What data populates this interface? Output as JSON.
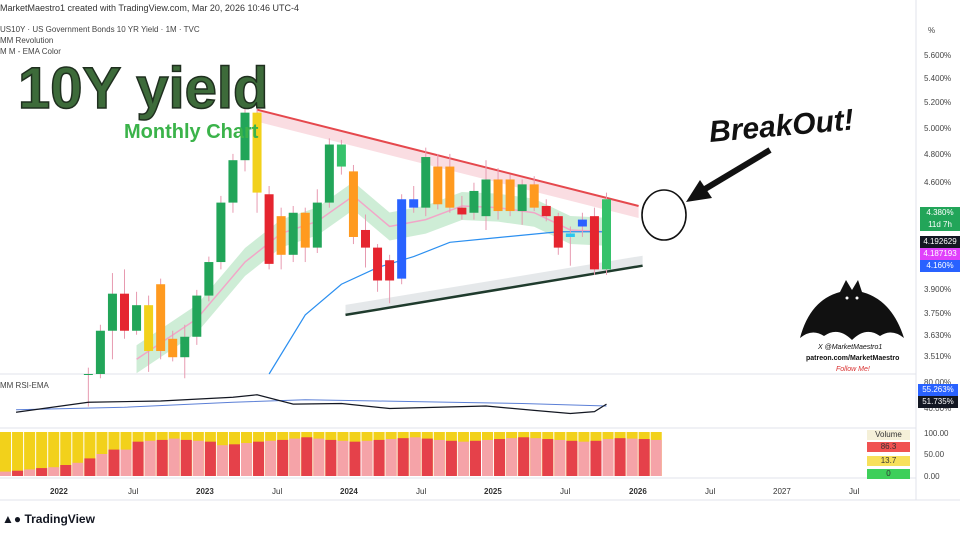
{
  "header": {
    "created_by": "MarketMaestro1 created with TradingView.com, Mar 20, 2026 10:46 UTC-4",
    "symbol_line": "US10Y · US Government Bonds 10 YR Yield · 1M · TVC",
    "indicator_1": "MM Revolution",
    "indicator_2": "M M - EMA Color",
    "rsi_label": "MM RSI-EMA"
  },
  "overlay": {
    "title": "10Y yield",
    "subtitle": "Monthly Chart",
    "callout": "BreakOut!",
    "watermark_1": "X @MarketMaestro1",
    "watermark_2": "patreon.com/MarketMaestro",
    "watermark_3": "Follow Me!"
  },
  "price_axis": {
    "unit": "%",
    "ticks": [
      "5.600%",
      "5.400%",
      "5.200%",
      "5.000%",
      "4.800%",
      "4.600%",
      "3.900%",
      "3.750%",
      "3.630%",
      "3.510%"
    ],
    "badge_last": "4.380%",
    "badge_countdown": "11d 7h",
    "badge_ema_fast": "4.192629",
    "badge_ema_slow": "4.187193",
    "badge_low": "4.160%"
  },
  "rsi_axis": {
    "ticks": [
      "80.00%",
      "40.00%"
    ],
    "badge_rsi": "55.263%",
    "badge_ema": "51.735%"
  },
  "volume_axis": {
    "ticks": [
      "100.00",
      "50.00",
      "0.00"
    ],
    "legend_title": "Volume",
    "legend_values": [
      "86.3",
      "13.7",
      "0"
    ],
    "legend_colors": [
      "#f05252",
      "#f7e05a",
      "#3ecf5a"
    ]
  },
  "time_axis": [
    "2022",
    "Jul",
    "2023",
    "Jul",
    "2024",
    "Jul",
    "2025",
    "Jul",
    "2026",
    "Jul",
    "2027",
    "Jul"
  ],
  "brand": "TradingView",
  "chart_data": {
    "type": "candlestick",
    "title": "US10Y · US Government Bonds 10 YR Yield · 1M · TVC",
    "interval": "1M",
    "yscale": "log",
    "ylim": [
      3.45,
      5.75
    ],
    "x_range": [
      "2021-08",
      "2027-09"
    ],
    "colors": {
      "up": "#22a559",
      "up_strong": "#36c26b",
      "down": "#e5252f",
      "orange": "#ff9a1f",
      "yellow": "#f2d11b",
      "blue": "#2962ff",
      "cyan": "#29c7ef"
    },
    "candles": [
      {
        "m": "2022-03",
        "o": 3.45,
        "h": 3.48,
        "l": 3.3,
        "c": 3.45,
        "color": "up"
      },
      {
        "m": "2022-04",
        "o": 3.45,
        "h": 3.69,
        "l": 3.43,
        "c": 3.66,
        "color": "up"
      },
      {
        "m": "2022-05",
        "o": 3.66,
        "h": 3.96,
        "l": 3.52,
        "c": 3.85,
        "color": "up"
      },
      {
        "m": "2022-06",
        "o": 3.85,
        "h": 3.98,
        "l": 3.62,
        "c": 3.66,
        "color": "down"
      },
      {
        "m": "2022-07",
        "o": 3.66,
        "h": 3.86,
        "l": 3.64,
        "c": 3.79,
        "color": "up"
      },
      {
        "m": "2022-08",
        "o": 3.79,
        "h": 3.84,
        "l": 3.46,
        "c": 3.56,
        "color": "yellow"
      },
      {
        "m": "2022-09",
        "o": 3.56,
        "h": 3.93,
        "l": 3.52,
        "c": 3.9,
        "color": "orange"
      },
      {
        "m": "2022-10",
        "o": 3.62,
        "h": 3.66,
        "l": 3.51,
        "c": 3.53,
        "color": "orange"
      },
      {
        "m": "2022-11",
        "o": 3.53,
        "h": 3.69,
        "l": 3.43,
        "c": 3.63,
        "color": "up"
      },
      {
        "m": "2022-12",
        "o": 3.63,
        "h": 3.87,
        "l": 3.59,
        "c": 3.84,
        "color": "up"
      },
      {
        "m": "2023-01",
        "o": 3.84,
        "h": 4.05,
        "l": 3.81,
        "c": 4.02,
        "color": "up"
      },
      {
        "m": "2023-02",
        "o": 4.02,
        "h": 4.4,
        "l": 3.98,
        "c": 4.36,
        "color": "up"
      },
      {
        "m": "2023-03",
        "o": 4.36,
        "h": 4.66,
        "l": 4.3,
        "c": 4.62,
        "color": "up"
      },
      {
        "m": "2023-04",
        "o": 4.62,
        "h": 4.97,
        "l": 4.55,
        "c": 4.93,
        "color": "up"
      },
      {
        "m": "2023-05",
        "o": 4.93,
        "h": 5.02,
        "l": 4.3,
        "c": 4.42,
        "color": "yellow"
      },
      {
        "m": "2023-06",
        "o": 4.41,
        "h": 4.46,
        "l": 3.98,
        "c": 4.01,
        "color": "down"
      },
      {
        "m": "2023-07",
        "o": 4.28,
        "h": 4.33,
        "l": 3.98,
        "c": 4.06,
        "color": "orange"
      },
      {
        "m": "2023-08",
        "o": 4.06,
        "h": 4.34,
        "l": 4.02,
        "c": 4.3,
        "color": "up"
      },
      {
        "m": "2023-09",
        "o": 4.3,
        "h": 4.33,
        "l": 4.02,
        "c": 4.1,
        "color": "orange"
      },
      {
        "m": "2023-10",
        "o": 4.1,
        "h": 4.44,
        "l": 4.07,
        "c": 4.36,
        "color": "up"
      },
      {
        "m": "2023-11",
        "o": 4.36,
        "h": 4.76,
        "l": 4.33,
        "c": 4.72,
        "color": "up"
      },
      {
        "m": "2023-12",
        "o": 4.72,
        "h": 4.75,
        "l": 4.53,
        "c": 4.58,
        "color": "up_strong"
      },
      {
        "m": "2024-01",
        "o": 4.55,
        "h": 4.59,
        "l": 4.12,
        "c": 4.16,
        "color": "orange"
      },
      {
        "m": "2024-02",
        "o": 4.2,
        "h": 4.29,
        "l": 3.99,
        "c": 4.1,
        "color": "down"
      },
      {
        "m": "2024-03",
        "o": 4.1,
        "h": 4.12,
        "l": 3.86,
        "c": 3.92,
        "color": "down"
      },
      {
        "m": "2024-04",
        "o": 3.92,
        "h": 4.06,
        "l": 3.8,
        "c": 4.03,
        "color": "down"
      },
      {
        "m": "2024-05",
        "o": 3.93,
        "h": 4.41,
        "l": 3.9,
        "c": 4.38,
        "color": "blue"
      },
      {
        "m": "2024-06",
        "o": 4.38,
        "h": 4.46,
        "l": 4.3,
        "c": 4.33,
        "color": "blue"
      },
      {
        "m": "2024-07",
        "o": 4.33,
        "h": 4.7,
        "l": 4.28,
        "c": 4.64,
        "color": "up"
      },
      {
        "m": "2024-08",
        "o": 4.58,
        "h": 4.66,
        "l": 4.32,
        "c": 4.35,
        "color": "orange"
      },
      {
        "m": "2024-09",
        "o": 4.58,
        "h": 4.66,
        "l": 4.3,
        "c": 4.33,
        "color": "orange"
      },
      {
        "m": "2024-10",
        "o": 4.33,
        "h": 4.4,
        "l": 4.26,
        "c": 4.29,
        "color": "down"
      },
      {
        "m": "2024-11",
        "o": 4.3,
        "h": 4.48,
        "l": 4.26,
        "c": 4.43,
        "color": "up"
      },
      {
        "m": "2024-12",
        "o": 4.28,
        "h": 4.62,
        "l": 4.2,
        "c": 4.5,
        "color": "up"
      },
      {
        "m": "2025-01",
        "o": 4.5,
        "h": 4.57,
        "l": 4.26,
        "c": 4.31,
        "color": "orange"
      },
      {
        "m": "2025-02",
        "o": 4.5,
        "h": 4.53,
        "l": 4.28,
        "c": 4.31,
        "color": "orange"
      },
      {
        "m": "2025-03",
        "o": 4.31,
        "h": 4.5,
        "l": 4.23,
        "c": 4.47,
        "color": "up"
      },
      {
        "m": "2025-04",
        "o": 4.47,
        "h": 4.52,
        "l": 4.31,
        "c": 4.33,
        "color": "orange"
      },
      {
        "m": "2025-05",
        "o": 4.34,
        "h": 4.38,
        "l": 4.25,
        "c": 4.28,
        "color": "down"
      },
      {
        "m": "2025-06",
        "o": 4.28,
        "h": 4.3,
        "l": 4.06,
        "c": 4.1,
        "color": "down"
      },
      {
        "m": "2025-07",
        "o": 4.16,
        "h": 4.22,
        "l": 4.0,
        "c": 4.18,
        "color": "cyan"
      },
      {
        "m": "2025-08",
        "o": 4.22,
        "h": 4.3,
        "l": 4.16,
        "c": 4.26,
        "color": "blue"
      },
      {
        "m": "2025-09",
        "o": 4.28,
        "h": 4.33,
        "l": 3.95,
        "c": 3.98,
        "color": "down"
      },
      {
        "m": "2025-10",
        "o": 3.98,
        "h": 4.42,
        "l": 3.95,
        "c": 4.38,
        "color": "up_strong"
      }
    ],
    "trendline_upper": [
      {
        "m": "2023-05",
        "v": 4.95
      },
      {
        "m": "2025-12",
        "v": 4.34
      }
    ],
    "trendline_lower": [
      {
        "m": "2024-02",
        "v": 3.74
      },
      {
        "m": "2025-12",
        "v": 4.0
      }
    ],
    "ema_fast": [
      {
        "m": "2022-07",
        "v": 3.52
      },
      {
        "m": "2022-12",
        "v": 3.72
      },
      {
        "m": "2023-04",
        "v": 4.02
      },
      {
        "m": "2023-07",
        "v": 4.18
      },
      {
        "m": "2023-10",
        "v": 4.25
      },
      {
        "m": "2024-01",
        "v": 4.4
      },
      {
        "m": "2024-04",
        "v": 4.22
      },
      {
        "m": "2024-07",
        "v": 4.26
      },
      {
        "m": "2024-10",
        "v": 4.34
      },
      {
        "m": "2025-01",
        "v": 4.33
      },
      {
        "m": "2025-04",
        "v": 4.3
      },
      {
        "m": "2025-07",
        "v": 4.2
      },
      {
        "m": "2025-10",
        "v": 4.19
      }
    ],
    "ema_slow": [
      {
        "m": "2023-06",
        "v": 3.45
      },
      {
        "m": "2023-09",
        "v": 3.74
      },
      {
        "m": "2023-12",
        "v": 3.9
      },
      {
        "m": "2024-03",
        "v": 3.99
      },
      {
        "m": "2024-06",
        "v": 4.05
      },
      {
        "m": "2024-09",
        "v": 4.13
      },
      {
        "m": "2024-12",
        "v": 4.15
      },
      {
        "m": "2025-03",
        "v": 4.17
      },
      {
        "m": "2025-06",
        "v": 4.19
      },
      {
        "m": "2025-10",
        "v": 4.19
      }
    ],
    "rsi": {
      "ylim": [
        20,
        100
      ],
      "rsi_line": [
        {
          "m": "2021-09",
          "v": 42
        },
        {
          "m": "2022-03",
          "v": 58
        },
        {
          "m": "2022-09",
          "v": 60
        },
        {
          "m": "2023-03",
          "v": 66
        },
        {
          "m": "2023-05",
          "v": 70
        },
        {
          "m": "2023-08",
          "v": 55
        },
        {
          "m": "2023-12",
          "v": 56
        },
        {
          "m": "2024-04",
          "v": 48
        },
        {
          "m": "2024-08",
          "v": 50
        },
        {
          "m": "2024-12",
          "v": 52
        },
        {
          "m": "2025-04",
          "v": 45
        },
        {
          "m": "2025-07",
          "v": 40
        },
        {
          "m": "2025-09",
          "v": 43
        },
        {
          "m": "2025-10",
          "v": 55
        }
      ],
      "ema_line": [
        {
          "m": "2021-09",
          "v": 46
        },
        {
          "m": "2022-06",
          "v": 50
        },
        {
          "m": "2023-03",
          "v": 58
        },
        {
          "m": "2023-09",
          "v": 62
        },
        {
          "m": "2024-03",
          "v": 60
        },
        {
          "m": "2024-09",
          "v": 58
        },
        {
          "m": "2025-03",
          "v": 56
        },
        {
          "m": "2025-10",
          "v": 52
        }
      ]
    },
    "volume": {
      "ylim": [
        0,
        100
      ],
      "red_share": [
        10,
        12,
        15,
        18,
        20,
        25,
        30,
        40,
        50,
        60,
        60,
        78,
        80,
        82,
        85,
        82,
        80,
        78,
        70,
        72,
        75,
        78,
        80,
        82,
        85,
        88,
        85,
        82,
        80,
        78,
        80,
        82,
        84,
        86,
        88,
        85,
        82,
        80,
        78,
        80,
        82,
        84,
        86,
        88,
        86,
        84,
        82,
        80,
        78,
        80,
        84,
        86,
        85,
        84,
        82
      ]
    }
  }
}
